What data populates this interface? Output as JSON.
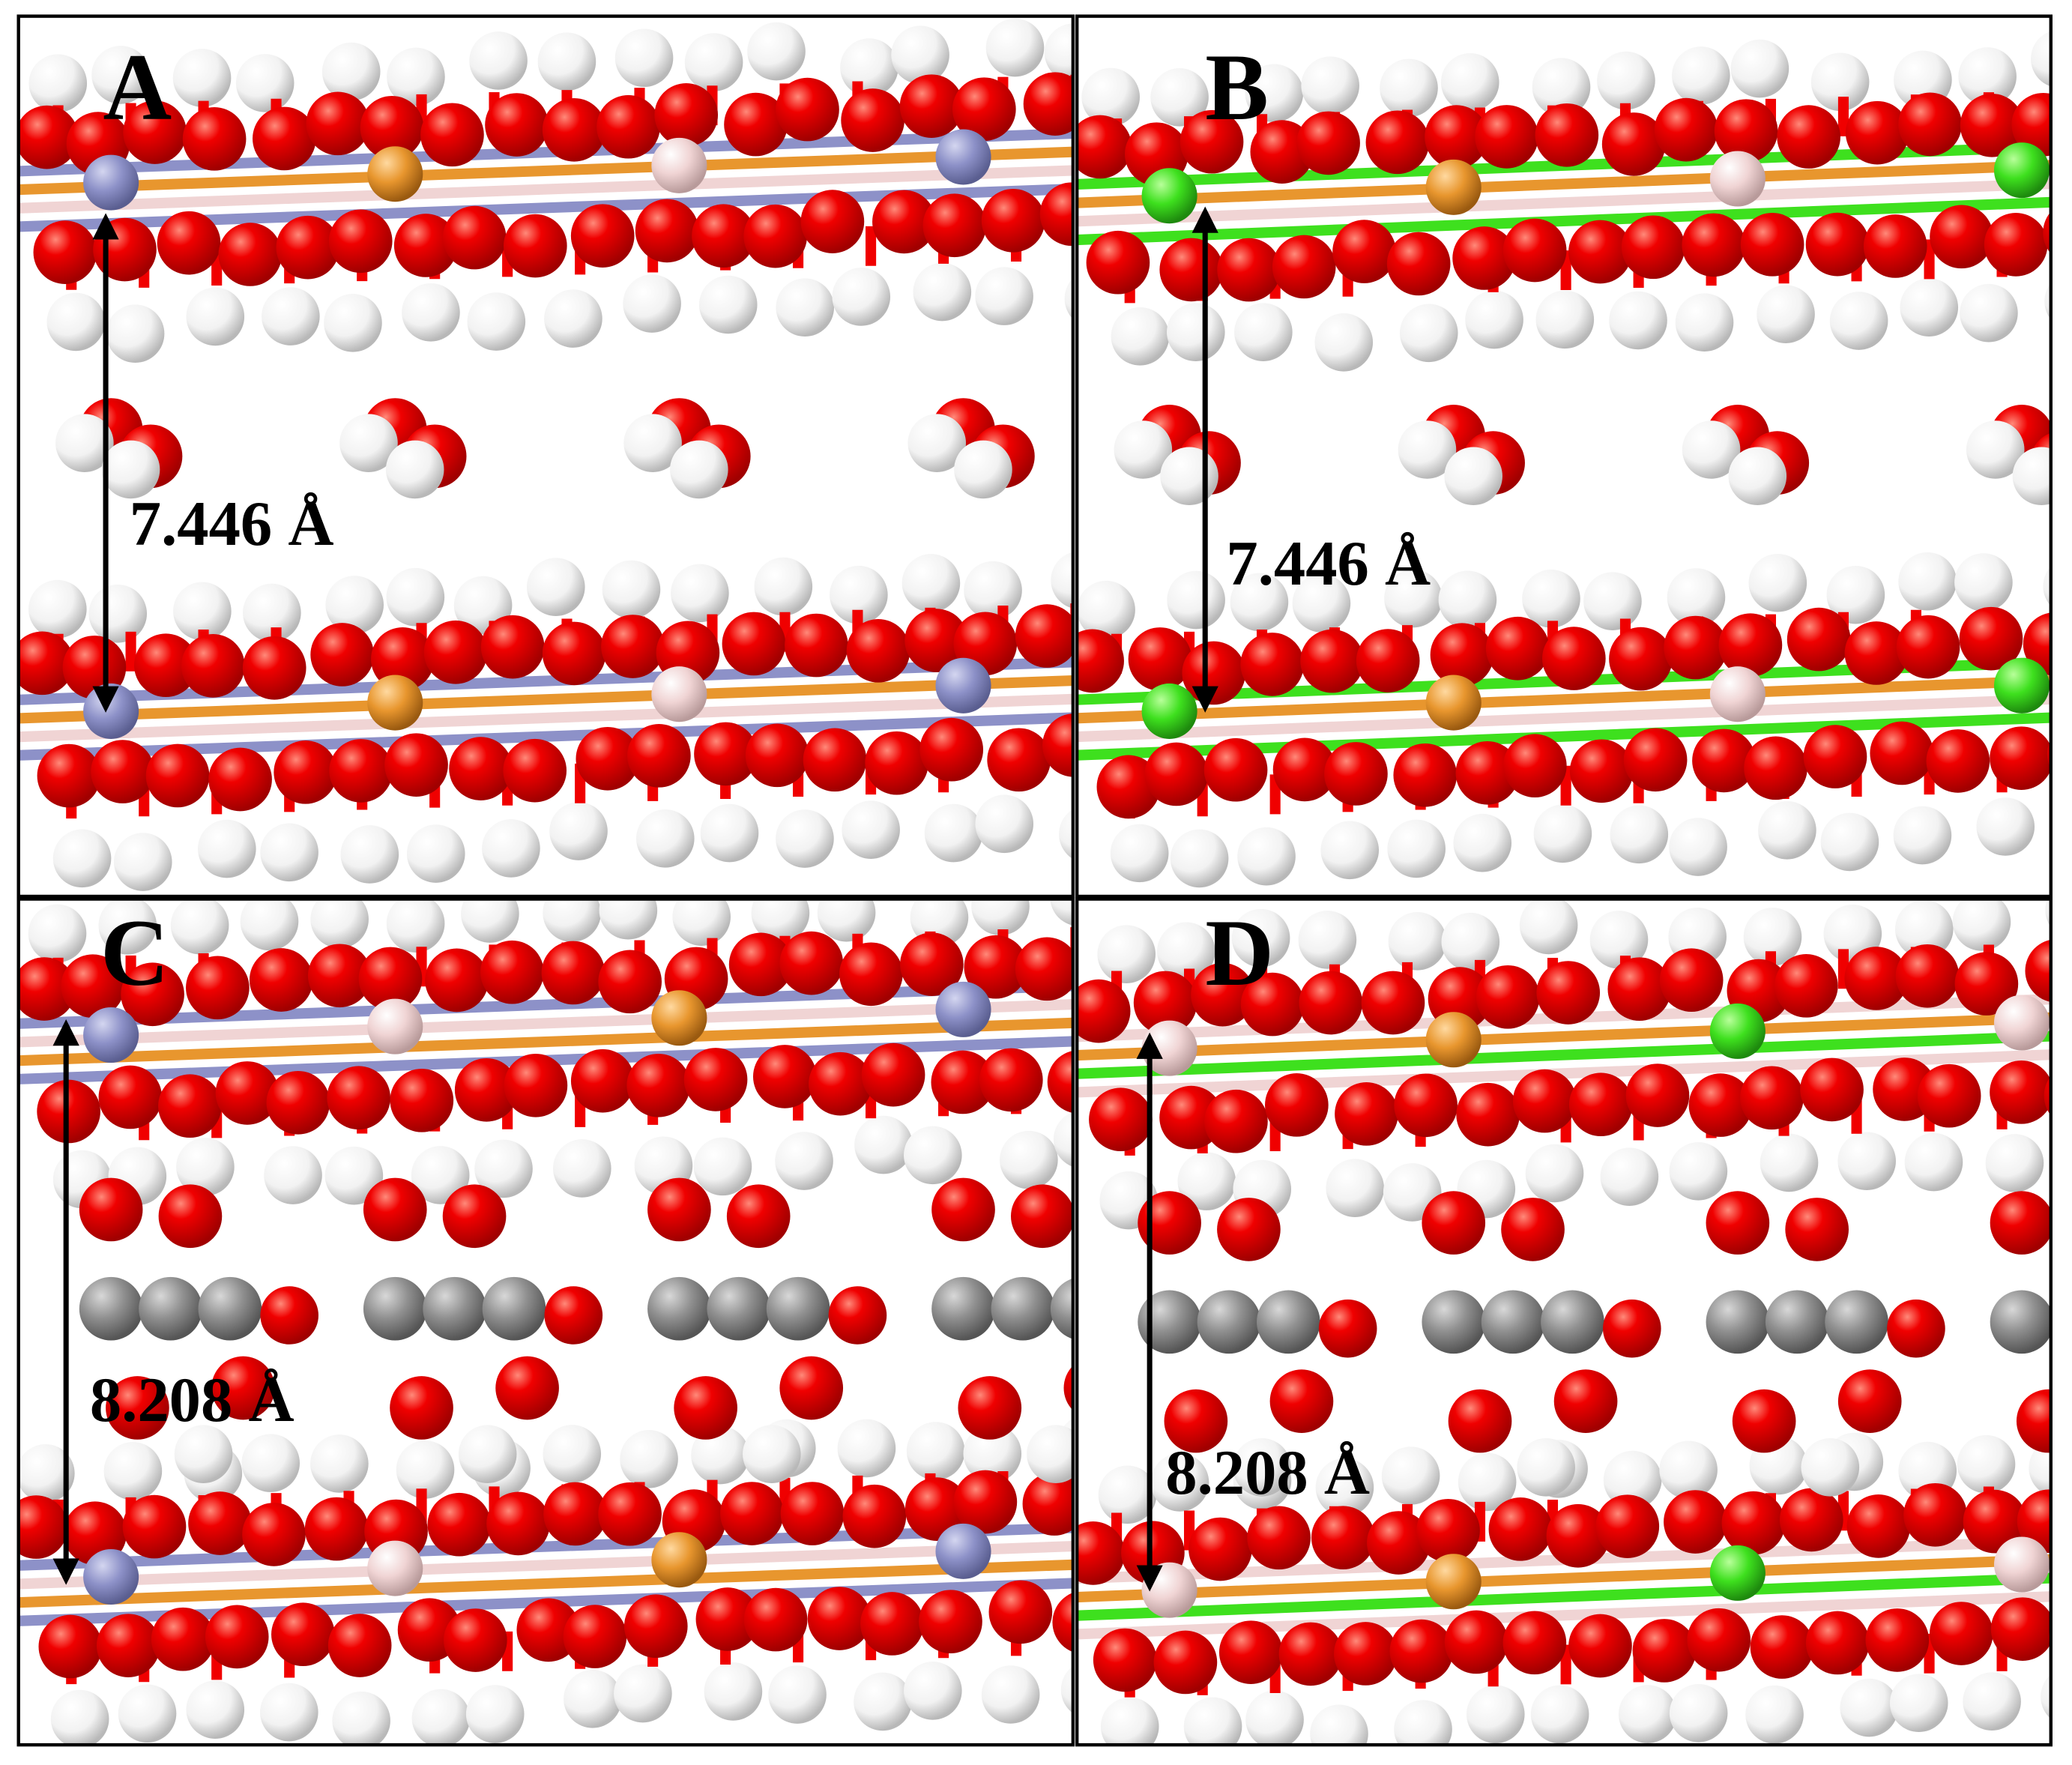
{
  "panels": [
    {
      "label": "A",
      "distance": "7.446 Å"
    },
    {
      "label": "B",
      "distance": "7.446 Å"
    },
    {
      "label": "C",
      "distance": "8.208 Å"
    },
    {
      "label": "D",
      "distance": "8.208 Å"
    }
  ]
}
